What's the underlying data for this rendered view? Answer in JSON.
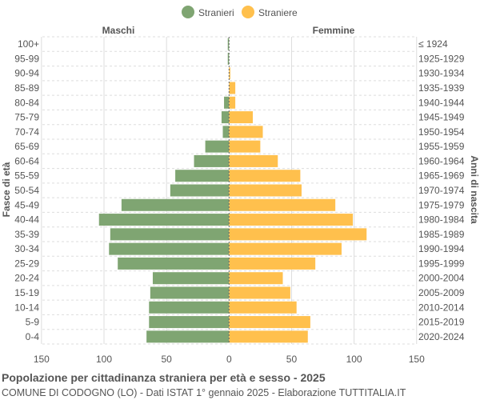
{
  "chart_data": {
    "type": "bar",
    "orientation": "horizontal-pyramid",
    "title": "Popolazione per cittadinanza straniera per età e sesso - 2025",
    "subtitle": "COMUNE DI CODOGNO (LO) - Dati ISTAT 1° gennaio 2025 - Elaborazione TUTTITALIA.IT",
    "left_label": "Maschi",
    "right_label": "Femmine",
    "ylabel_left": "Fasce di età",
    "ylabel_right": "Anni di nascita",
    "legend_position": "top",
    "xlim": [
      -150,
      150
    ],
    "xticks": [
      "150",
      "100",
      "50",
      "0",
      "50",
      "100",
      "150"
    ],
    "grid": true,
    "categories": [
      "100+",
      "95-99",
      "90-94",
      "85-89",
      "80-84",
      "75-79",
      "70-74",
      "65-69",
      "60-64",
      "55-59",
      "50-54",
      "45-49",
      "40-44",
      "35-39",
      "30-34",
      "25-29",
      "20-24",
      "15-19",
      "10-14",
      "5-9",
      "0-4"
    ],
    "birth_years": [
      "≤ 1924",
      "1925-1929",
      "1930-1934",
      "1935-1939",
      "1940-1944",
      "1945-1949",
      "1950-1954",
      "1955-1959",
      "1960-1964",
      "1965-1969",
      "1970-1974",
      "1975-1979",
      "1980-1984",
      "1985-1989",
      "1990-1994",
      "1995-1999",
      "2000-2004",
      "2005-2009",
      "2010-2014",
      "2015-2019",
      "2020-2024"
    ],
    "series": [
      {
        "name": "Stranieri",
        "color": "#7fa572",
        "side": "left",
        "values": [
          1,
          1,
          0,
          0,
          4,
          6,
          5,
          19,
          28,
          43,
          47,
          86,
          104,
          95,
          96,
          89,
          61,
          63,
          64,
          64,
          66
        ]
      },
      {
        "name": "Straniere",
        "color": "#ffc04d",
        "side": "right",
        "values": [
          0,
          0,
          1,
          5,
          5,
          19,
          27,
          25,
          39,
          57,
          58,
          85,
          99,
          110,
          90,
          69,
          43,
          49,
          54,
          65,
          63
        ]
      }
    ]
  }
}
